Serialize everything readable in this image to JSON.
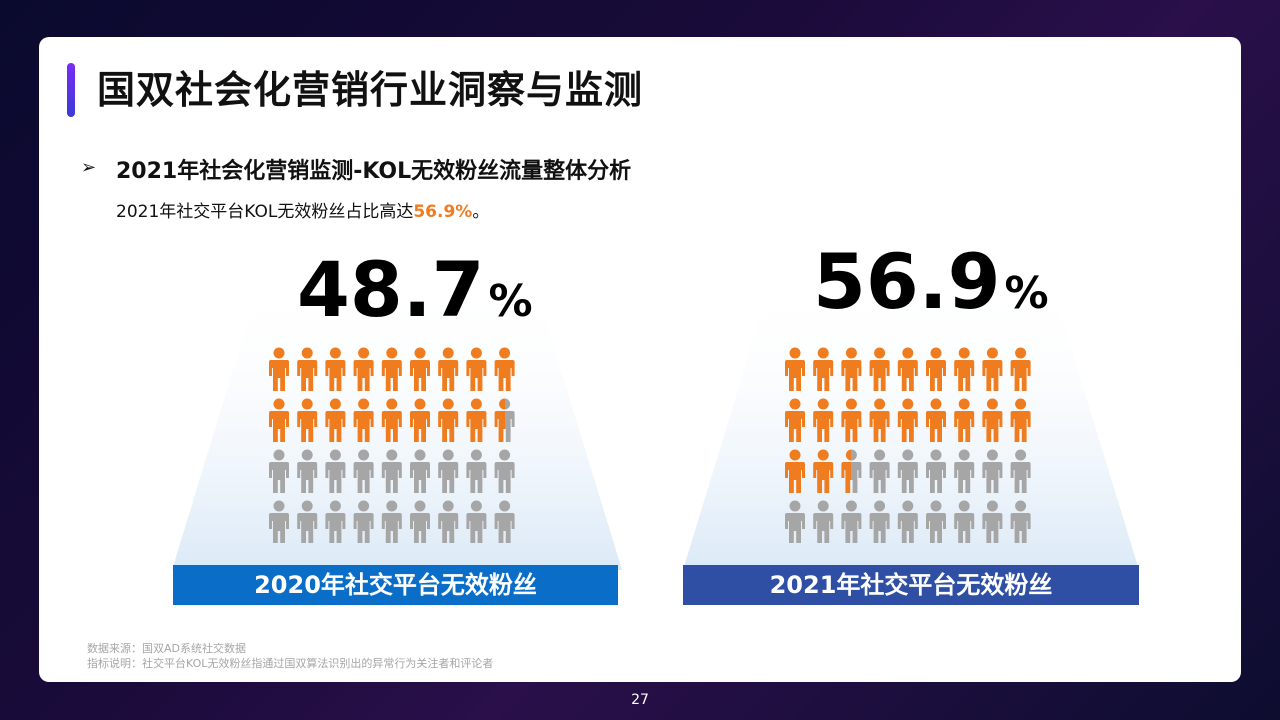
{
  "title": "国双社会化营销行业洞察与监测",
  "subtitle": "2021年社会化营销监测-KOL无效粉丝流量整体分析",
  "desc_prefix": "2021年社交平台KOL无效粉丝占比高达",
  "desc_highlight": "56.9%",
  "desc_suffix": "。",
  "colors": {
    "orange": "#ef7c1f",
    "gray": "#a6a6a6",
    "bar_left": "#0a6ec8",
    "bar_right": "#2e4fa3"
  },
  "chart_data": {
    "type": "pictogram",
    "unit_icon": "person-icon",
    "icons_per_panel": 36,
    "panels": [
      {
        "label": "2020年社交平台无效粉丝",
        "value_num": "48.7",
        "value_sym": "%",
        "value": 48.7
      },
      {
        "label": "2021年社交平台无效粉丝",
        "value_num": "56.9",
        "value_sym": "%",
        "value": 56.9
      }
    ]
  },
  "notes": {
    "source": "数据来源：国双AD系统社交数据",
    "metric": "指标说明：社交平台KOL无效粉丝指通过国双算法识别出的异常行为关注者和评论者"
  },
  "page_number": "27"
}
